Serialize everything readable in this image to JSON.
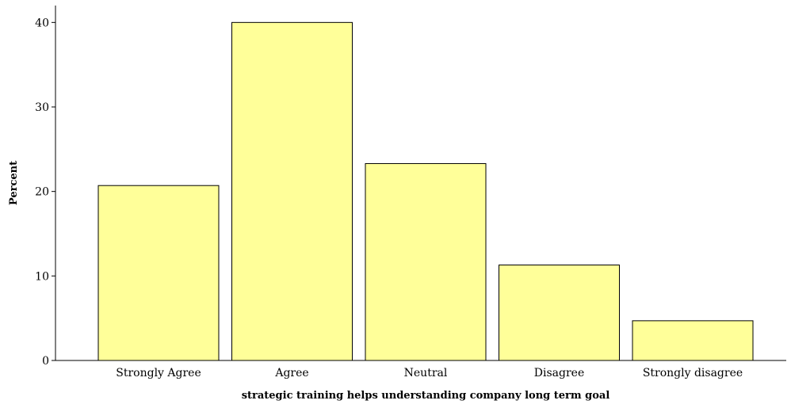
{
  "chart_data": {
    "type": "bar",
    "title": "",
    "xlabel": "strategic training helps understanding company long term goal",
    "ylabel": "Percent",
    "categories": [
      "Strongly Agree",
      "Agree",
      "Neutral",
      "Disagree",
      "Strongly disagree"
    ],
    "values": [
      20.7,
      40.0,
      23.3,
      11.3,
      4.7
    ],
    "ylim": [
      0,
      42
    ],
    "yticks": [
      0,
      10,
      20,
      30,
      40
    ],
    "grid": false,
    "colors": {
      "bar_fill": "#ffff99",
      "bar_stroke": "#000000",
      "axis": "#000000"
    }
  }
}
